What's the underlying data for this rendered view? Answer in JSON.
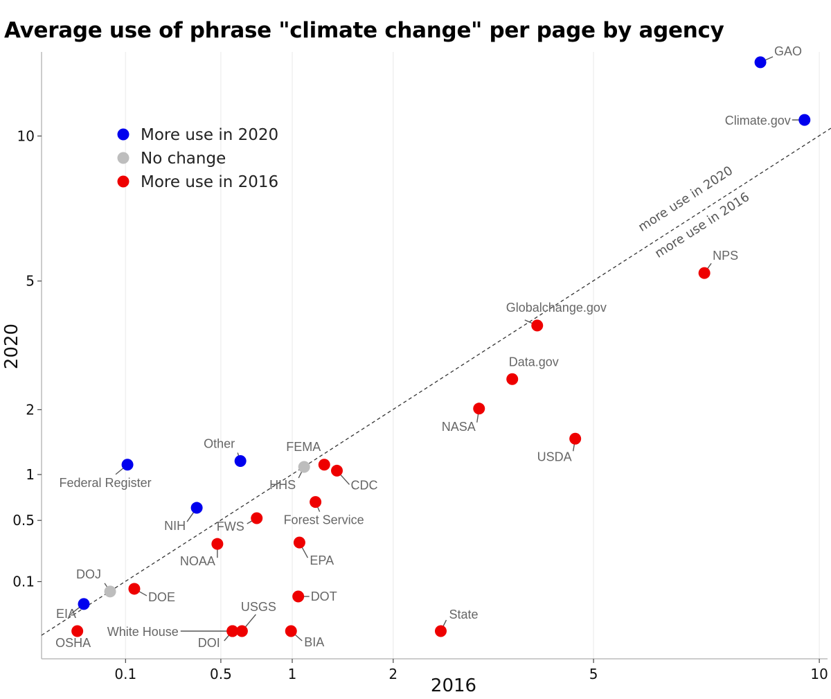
{
  "chart_data": {
    "type": "scatter",
    "title": "Average use of phrase \"climate change\" per page by agency",
    "xlabel": "2016",
    "ylabel": "2020",
    "x_scale": "sqrt",
    "y_scale": "sqrt",
    "x_ticks": [
      0.1,
      0.5,
      1,
      2,
      5,
      10
    ],
    "y_ticks": [
      0.1,
      0.5,
      1,
      2,
      5,
      10
    ],
    "xlim": [
      0,
      10.2
    ],
    "ylim": [
      0,
      15
    ],
    "grid": "vertical major lines, light",
    "legend_placement": "top-left",
    "legend": [
      {
        "label": "More use in 2020",
        "color": "#0000ee"
      },
      {
        "label": "No change",
        "color": "#bdbdbd"
      },
      {
        "label": "More use in 2016",
        "color": "#ee0000"
      }
    ],
    "reference_line": {
      "type": "y = x",
      "style": "dashed",
      "labels": [
        "more use in 2020",
        "more use in 2016"
      ]
    },
    "points": [
      {
        "name": "GAO",
        "x": 8.53,
        "y": 13.2,
        "group": "More use in 2020"
      },
      {
        "name": "Climate.gov",
        "x": 9.62,
        "y": 10.66,
        "group": "More use in 2020"
      },
      {
        "name": "NPS",
        "x": 7.24,
        "y": 5.23,
        "group": "More use in 2016"
      },
      {
        "name": "Globalchange.gov",
        "x": 4.02,
        "y": 3.81,
        "group": "More use in 2016"
      },
      {
        "name": "Data.gov",
        "x": 3.62,
        "y": 2.59,
        "group": "More use in 2016"
      },
      {
        "name": "NASA",
        "x": 3.12,
        "y": 2.02,
        "group": "More use in 2016"
      },
      {
        "name": "USDA",
        "x": 4.67,
        "y": 1.51,
        "group": "More use in 2016"
      },
      {
        "name": "State",
        "x": 2.59,
        "y": 0.0,
        "group": "More use in 2016"
      },
      {
        "name": "Other",
        "x": 0.62,
        "y": 1.18,
        "group": "More use in 2020"
      },
      {
        "name": "Federal Register",
        "x": 0.105,
        "y": 1.13,
        "group": "More use in 2020"
      },
      {
        "name": "HHS",
        "x": 1.1,
        "y": 1.1,
        "group": "No change"
      },
      {
        "name": "FEMA",
        "x": 1.28,
        "y": 1.13,
        "group": "More use in 2016"
      },
      {
        "name": "CDC",
        "x": 1.4,
        "y": 1.05,
        "group": "More use in 2016"
      },
      {
        "name": "Forest Service",
        "x": 1.2,
        "y": 0.68,
        "group": "More use in 2016"
      },
      {
        "name": "NIH",
        "x": 0.37,
        "y": 0.62,
        "group": "More use in 2020"
      },
      {
        "name": "FWS",
        "x": 0.73,
        "y": 0.52,
        "group": "More use in 2016"
      },
      {
        "name": "NOAA",
        "x": 0.48,
        "y": 0.31,
        "group": "More use in 2016"
      },
      {
        "name": "EPA",
        "x": 1.06,
        "y": 0.32,
        "group": "More use in 2016"
      },
      {
        "name": "DOJ",
        "x": 0.064,
        "y": 0.064,
        "group": "No change"
      },
      {
        "name": "DOE",
        "x": 0.124,
        "y": 0.073,
        "group": "More use in 2016"
      },
      {
        "name": "EIA",
        "x": 0.021,
        "y": 0.03,
        "group": "More use in 2020"
      },
      {
        "name": "OSHA",
        "x": 0.014,
        "y": 0.0,
        "group": "More use in 2016"
      },
      {
        "name": "DOT",
        "x": 1.05,
        "y": 0.049,
        "group": "More use in 2016"
      },
      {
        "name": "White House",
        "x": 0.57,
        "y": 0.0,
        "group": "More use in 2016"
      },
      {
        "name": "DOI",
        "x": 0.57,
        "y": 0.0,
        "group": "More use in 2016"
      },
      {
        "name": "USGS",
        "x": 0.63,
        "y": 0.0,
        "group": "More use in 2016"
      },
      {
        "name": "BIA",
        "x": 0.99,
        "y": 0.0,
        "group": "More use in 2016"
      }
    ]
  }
}
